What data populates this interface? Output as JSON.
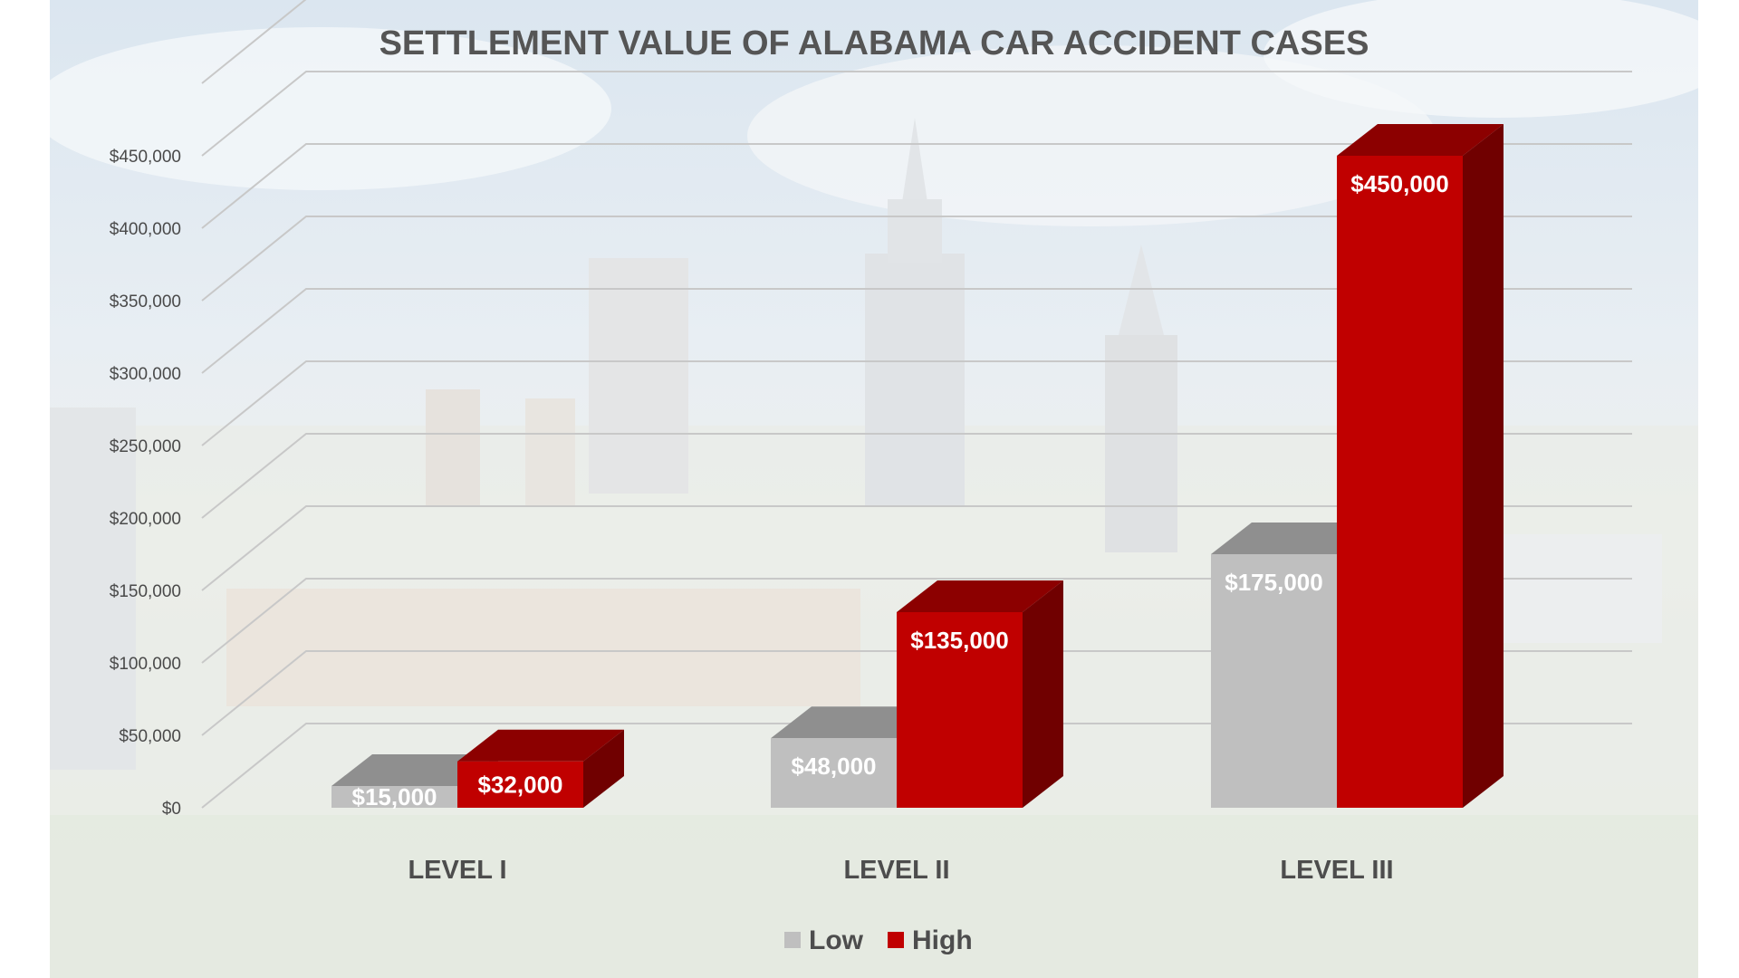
{
  "chart_data": {
    "type": "bar",
    "title": "SETTLEMENT VALUE OF ALABAMA CAR ACCIDENT CASES",
    "xlabel": "",
    "ylabel": "",
    "categories": [
      "LEVEL I",
      "LEVEL II",
      "LEVEL III"
    ],
    "series": [
      {
        "name": "Low",
        "color": "#bfbfbf",
        "values": [
          15000,
          48000,
          175000
        ],
        "labels": [
          "$15,000",
          "$48,000",
          "$175,000"
        ]
      },
      {
        "name": "High",
        "color": "#c00000",
        "values": [
          32000,
          135000,
          450000
        ],
        "labels": [
          "$32,000",
          "$135,000",
          "$450,000"
        ]
      }
    ],
    "ylim": [
      0,
      450000
    ],
    "yticks": [
      0,
      50000,
      100000,
      150000,
      200000,
      250000,
      300000,
      350000,
      400000,
      450000
    ],
    "ytick_labels": [
      "$0",
      "$50,000",
      "$100,000",
      "$150,000",
      "$200,000",
      "$250,000",
      "$300,000",
      "$350,000",
      "$400,000",
      "$450,000"
    ],
    "grid": true,
    "three_d": true,
    "legend_position": "bottom",
    "background": "faded city skyline photo"
  }
}
